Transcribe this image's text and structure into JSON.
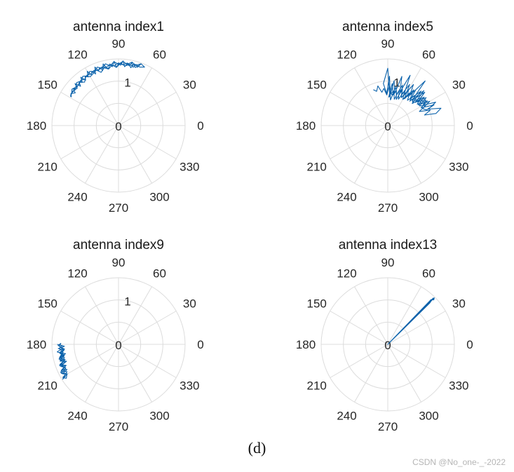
{
  "caption": "(d)",
  "watermark": "CSDN @No_one-_-2022",
  "colors": {
    "series": "#0b62ab",
    "grid": "#dcdcdc",
    "text": "#262626"
  },
  "chart_data": [
    {
      "type": "polar-line",
      "title": "antenna index1",
      "theta_ticks": [
        "0",
        "30",
        "60",
        "90",
        "120",
        "150",
        "180",
        "210",
        "240",
        "270",
        "300",
        "330"
      ],
      "r_ticks": [
        "0",
        "1"
      ],
      "rlim": [
        0,
        1.5
      ],
      "series": [
        {
          "name": "antenna index1",
          "theta_deg": [
            149,
            146,
            143,
            141,
            138,
            136,
            134,
            132,
            130,
            128,
            126,
            124,
            122,
            120,
            118,
            116,
            114,
            112,
            110,
            108,
            106,
            104,
            102,
            100,
            98,
            96,
            94,
            92,
            90,
            88,
            86,
            84,
            82,
            80,
            78,
            76,
            74,
            72,
            70,
            72,
            74,
            76,
            78,
            80,
            84,
            88,
            92,
            96,
            100,
            104,
            108,
            112,
            116,
            120,
            124,
            128,
            132,
            136,
            140,
            144,
            146,
            142,
            138,
            134,
            130,
            126,
            122,
            118,
            114,
            110,
            106,
            102,
            98,
            94,
            90,
            86,
            82,
            78,
            74,
            70,
            66,
            70,
            74,
            78,
            82,
            86,
            90,
            94,
            98,
            102,
            106,
            110,
            114,
            118,
            122,
            126,
            130,
            134,
            138,
            142,
            146,
            149
          ],
          "r": [
            1.24,
            1.29,
            1.22,
            1.31,
            1.25,
            1.36,
            1.23,
            1.33,
            1.27,
            1.38,
            1.26,
            1.34,
            1.29,
            1.41,
            1.3,
            1.36,
            1.27,
            1.42,
            1.32,
            1.37,
            1.29,
            1.43,
            1.34,
            1.3,
            1.4,
            1.33,
            1.45,
            1.31,
            1.39,
            1.36,
            1.46,
            1.33,
            1.41,
            1.37,
            1.44,
            1.35,
            1.42,
            1.38,
            1.47,
            1.4,
            1.36,
            1.43,
            1.33,
            1.39,
            1.35,
            1.41,
            1.31,
            1.37,
            1.29,
            1.34,
            1.26,
            1.35,
            1.3,
            1.27,
            1.33,
            1.24,
            1.31,
            1.28,
            1.26,
            1.3,
            1.27,
            1.33,
            1.29,
            1.35,
            1.3,
            1.37,
            1.32,
            1.38,
            1.33,
            1.4,
            1.34,
            1.42,
            1.36,
            1.44,
            1.38,
            1.45,
            1.39,
            1.46,
            1.41,
            1.48,
            1.44,
            1.4,
            1.43,
            1.38,
            1.42,
            1.37,
            1.41,
            1.35,
            1.39,
            1.34,
            1.37,
            1.32,
            1.36,
            1.31,
            1.34,
            1.29,
            1.33,
            1.28,
            1.3,
            1.27,
            1.29,
            1.26
          ]
        }
      ]
    },
    {
      "type": "polar-line",
      "title": "antenna index5",
      "theta_ticks": [
        "0",
        "30",
        "60",
        "90",
        "120",
        "150",
        "180",
        "210",
        "240",
        "270",
        "300",
        "330"
      ],
      "r_ticks": [
        "0",
        "1"
      ],
      "rlim": [
        0,
        1.5
      ],
      "series": [
        {
          "name": "antenna index5",
          "theta_deg": [
            78,
            84,
            88,
            92,
            96,
            90,
            86,
            82,
            78,
            74,
            70,
            66,
            62,
            58,
            54,
            50,
            46,
            42,
            38,
            34,
            30,
            26,
            22,
            18,
            14,
            16,
            20,
            24,
            28,
            32,
            36,
            40,
            44,
            48,
            52,
            56,
            60,
            64,
            68,
            72,
            76,
            80,
            84,
            88,
            86,
            82,
            78,
            74,
            70,
            66,
            62,
            58,
            54,
            50,
            46,
            42,
            38,
            34,
            30,
            26,
            22,
            24,
            28,
            32,
            36,
            40,
            44,
            48,
            52,
            56,
            60,
            64,
            68,
            72,
            76,
            80,
            84,
            88,
            92,
            96,
            100,
            104,
            108,
            112
          ],
          "r": [
            0.9,
            0.58,
            1.11,
            0.72,
            0.95,
            1.29,
            0.65,
            1.02,
            0.74,
            1.15,
            0.8,
            1.24,
            0.76,
            1.09,
            0.84,
            1.31,
            0.79,
            1.12,
            0.86,
            1.03,
            0.92,
            1.2,
            0.99,
            1.26,
            1.12,
            0.86,
            1.02,
            0.78,
            0.96,
            0.84,
            1.07,
            0.81,
            1.13,
            0.74,
            1.01,
            0.79,
            0.93,
            0.7,
            0.88,
            0.62,
            0.8,
            0.7,
            0.95,
            0.64,
            0.78,
            0.69,
            0.88,
            0.73,
            0.97,
            0.76,
            1.05,
            0.71,
            0.99,
            0.78,
            1.08,
            0.74,
            1.04,
            0.83,
            1.09,
            0.87,
            0.94,
            1.14,
            0.85,
            1.05,
            0.82,
            0.98,
            0.77,
            0.92,
            0.72,
            0.89,
            0.68,
            0.86,
            0.64,
            0.83,
            0.61,
            0.79,
            0.73,
            0.88,
            0.69,
            0.84,
            0.76,
            0.92,
            0.81,
            0.87
          ]
        }
      ]
    },
    {
      "type": "polar-line",
      "title": "antenna index9",
      "theta_ticks": [
        "0",
        "30",
        "60",
        "90",
        "120",
        "150",
        "180",
        "210",
        "240",
        "270",
        "300",
        "330"
      ],
      "r_ticks": [
        "0",
        "1"
      ],
      "rlim": [
        0,
        1.5
      ],
      "series": [
        {
          "name": "antenna index9",
          "theta_deg": [
            180,
            182,
            184,
            186,
            188,
            190,
            192,
            194,
            196,
            198,
            200,
            202,
            204,
            206,
            208,
            210,
            212,
            209,
            206,
            203,
            200,
            197,
            194,
            191,
            188,
            185,
            182,
            179,
            181,
            184,
            187,
            190,
            193,
            196,
            199,
            202,
            205,
            208,
            211,
            213,
            210,
            207,
            204,
            201,
            198,
            195,
            192,
            189,
            186,
            183,
            181,
            184,
            188,
            192,
            196,
            200,
            204,
            208
          ],
          "r": [
            1.38,
            1.22,
            1.36,
            1.24,
            1.34,
            1.21,
            1.33,
            1.25,
            1.37,
            1.23,
            1.35,
            1.27,
            1.4,
            1.29,
            1.42,
            1.33,
            1.48,
            1.36,
            1.45,
            1.31,
            1.41,
            1.28,
            1.38,
            1.24,
            1.35,
            1.22,
            1.33,
            1.3,
            1.36,
            1.26,
            1.39,
            1.27,
            1.37,
            1.25,
            1.4,
            1.29,
            1.43,
            1.31,
            1.46,
            1.4,
            1.34,
            1.44,
            1.3,
            1.39,
            1.27,
            1.36,
            1.25,
            1.33,
            1.23,
            1.31,
            1.27,
            1.34,
            1.26,
            1.35,
            1.28,
            1.37,
            1.3,
            1.41
          ]
        }
      ]
    },
    {
      "type": "polar-line",
      "title": "antenna index13",
      "theta_ticks": [
        "0",
        "30",
        "60",
        "90",
        "120",
        "150",
        "180",
        "210",
        "240",
        "270",
        "300",
        "330"
      ],
      "r_ticks": [
        "0"
      ],
      "rlim": [
        0,
        1.5
      ],
      "series": [
        {
          "name": "antenna index13",
          "theta_deg": [
            0,
            45,
            44,
            46,
            0,
            45.5,
            44.5,
            0,
            45,
            45.5,
            0
          ],
          "r": [
            0,
            1.48,
            1.44,
            1.4,
            0,
            1.46,
            1.32,
            0,
            1.42,
            1.36,
            0
          ]
        }
      ]
    }
  ]
}
